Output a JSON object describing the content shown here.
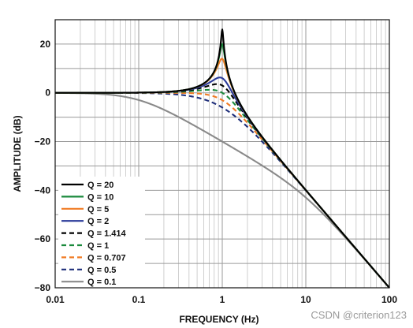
{
  "watermark": "CSDN @criterion123",
  "chart_data": {
    "type": "line",
    "title": "",
    "xlabel": "FREQUENCY (Hz)",
    "ylabel": "AMPLITUDE (dB)",
    "xscale": "log",
    "xlim": [
      0.01,
      100
    ],
    "ylim": [
      -80,
      30
    ],
    "x_ticks": [
      0.01,
      0.1,
      1,
      10,
      100
    ],
    "x_tick_labels": [
      "0.01",
      "0.1",
      "1",
      "10",
      "100"
    ],
    "y_ticks": [
      20,
      0,
      -20,
      -40,
      -60,
      -80
    ],
    "y_tick_labels": [
      "20",
      "0",
      "−20",
      "−40",
      "−60",
      "−80"
    ],
    "grid": true,
    "legend_position": "bottom-left",
    "response": "second-order low-pass",
    "cutoff_hz": 1,
    "series": [
      {
        "name": "Q = 20",
        "q": 20,
        "color": "#000000",
        "dash": "solid"
      },
      {
        "name": "Q = 10",
        "q": 10,
        "color": "#1a8a3c",
        "dash": "solid"
      },
      {
        "name": "Q = 5",
        "q": 5,
        "color": "#f07b24",
        "dash": "solid"
      },
      {
        "name": "Q = 2",
        "q": 2,
        "color": "#2a3a9a",
        "dash": "solid"
      },
      {
        "name": "Q = 1.414",
        "q": 1.414,
        "color": "#000000",
        "dash": "dashed"
      },
      {
        "name": "Q = 1",
        "q": 1,
        "color": "#1a8a3c",
        "dash": "dashed"
      },
      {
        "name": "Q = 0.707",
        "q": 0.707,
        "color": "#f07b24",
        "dash": "dashed"
      },
      {
        "name": "Q = 0.5",
        "q": 0.5,
        "color": "#1f2f7a",
        "dash": "dashed"
      },
      {
        "name": "Q = 0.1",
        "q": 0.1,
        "color": "#8a8a8a",
        "dash": "solid"
      }
    ]
  }
}
